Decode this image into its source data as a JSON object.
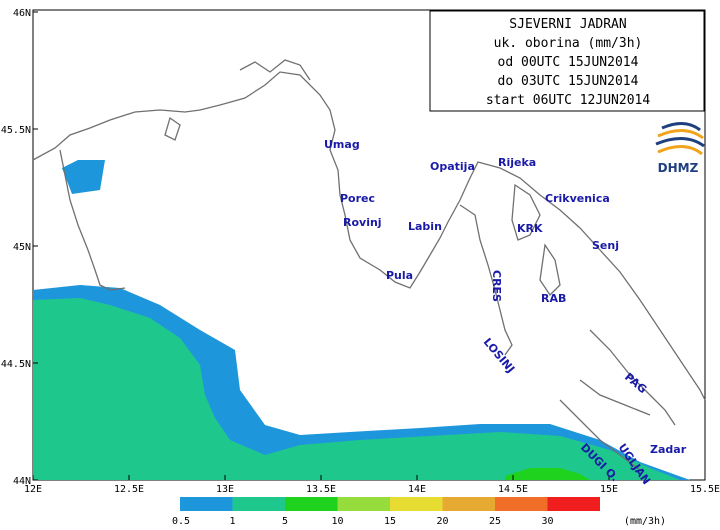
{
  "title_box": {
    "lines": [
      "SJEVERNI JADRAN",
      "uk. oborina (mm/3h)",
      "od 00UTC 15JUN2014",
      "do 03UTC 15JUN2014",
      "start 06UTC 12JUN2014"
    ]
  },
  "logo": {
    "text": "DHMZ",
    "colors": {
      "blue": "#1f3f7f",
      "orange": "#f2a31c"
    }
  },
  "axes": {
    "lon_ticks": [
      "12E",
      "12.5E",
      "13E",
      "13.5E",
      "14E",
      "14.5E",
      "15E",
      "15.5E"
    ],
    "lat_ticks": [
      "46N",
      "45.5N",
      "45N",
      "44.5N",
      "44N"
    ]
  },
  "places": [
    {
      "name": "Umag"
    },
    {
      "name": "Porec"
    },
    {
      "name": "Rovinj"
    },
    {
      "name": "Pula"
    },
    {
      "name": "Labin"
    },
    {
      "name": "Opatija"
    },
    {
      "name": "Rijeka"
    },
    {
      "name": "Crikvenica"
    },
    {
      "name": "KRK"
    },
    {
      "name": "Senj"
    },
    {
      "name": "CRES"
    },
    {
      "name": "RAB"
    },
    {
      "name": "LOSINJ"
    },
    {
      "name": "PAG"
    },
    {
      "name": "UGLJAN"
    },
    {
      "name": "DUGI O."
    },
    {
      "name": "Zadar"
    }
  ],
  "legend": {
    "unit": "(mm/3h)",
    "labels": [
      "0.5",
      "1",
      "5",
      "10",
      "15",
      "20",
      "25",
      "30"
    ],
    "colors": [
      "#1e96dc",
      "#1ec88c",
      "#1ed21e",
      "#96dc3c",
      "#e6dc32",
      "#e6aa32",
      "#f06e28",
      "#f01e1e"
    ]
  },
  "precip_colors": {
    "light": "#1e96dc",
    "medium": "#1ec88c",
    "heavy": "#1ed21e"
  }
}
